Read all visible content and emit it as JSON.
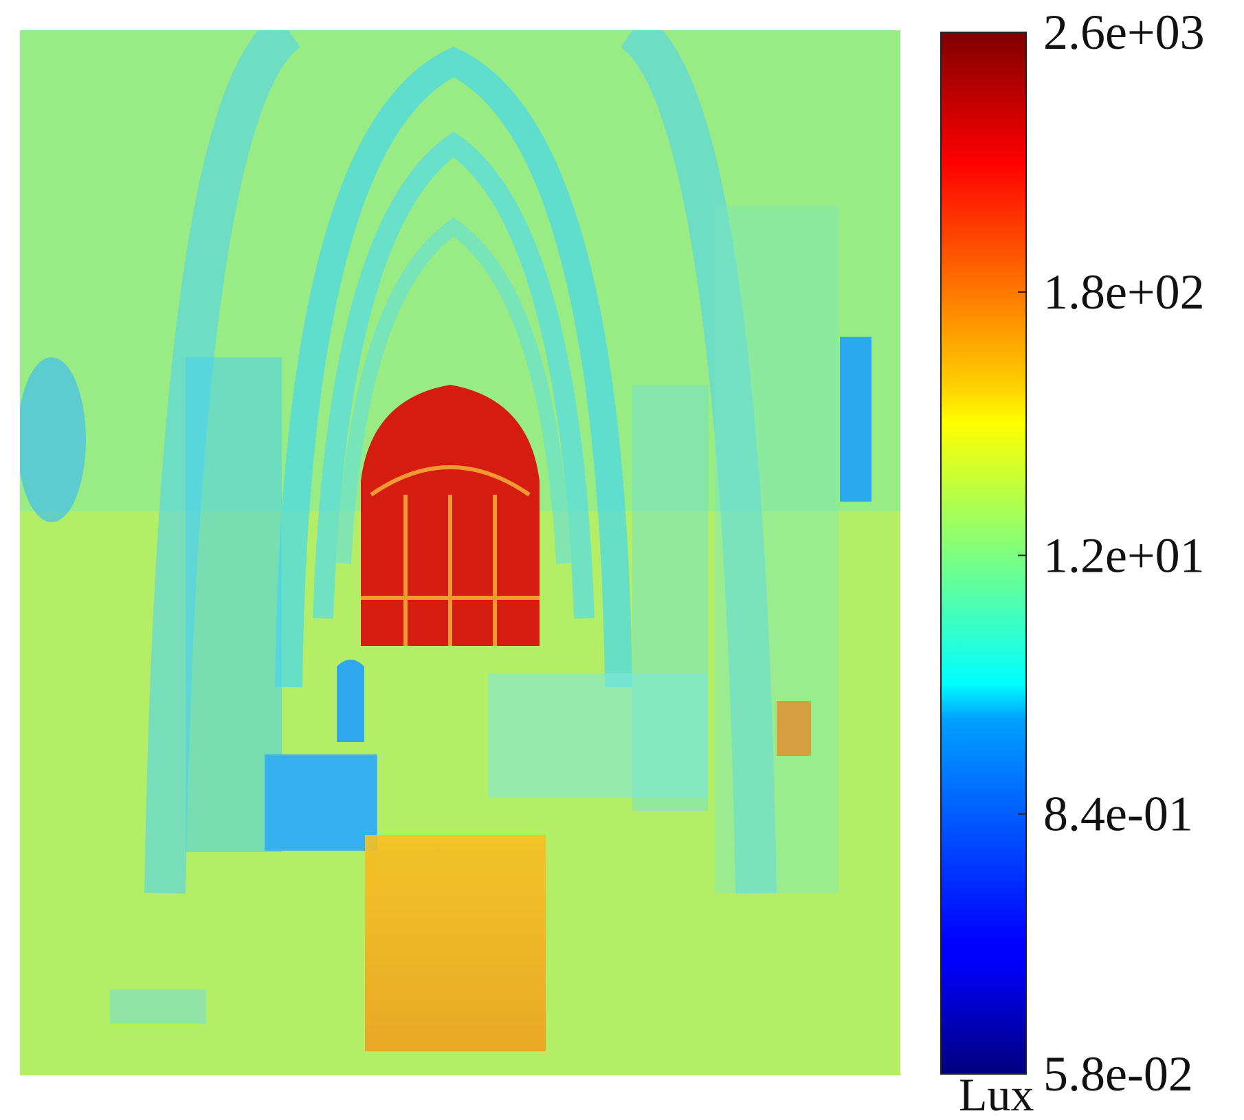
{
  "chart_data": {
    "type": "heatmap",
    "colorbar": {
      "label": "Lux",
      "colormap": "jet",
      "scale": "log",
      "lim": [
        0.058,
        2600
      ],
      "ticks": [
        {
          "value": 0.058,
          "label": "5.8e-02"
        },
        {
          "value": 0.84,
          "label": "8.4e-01"
        },
        {
          "value": 12,
          "label": "1.2e+01"
        },
        {
          "value": 180,
          "label": "1.8e+02"
        },
        {
          "value": 2600,
          "label": "2.6e+03"
        }
      ]
    }
  }
}
